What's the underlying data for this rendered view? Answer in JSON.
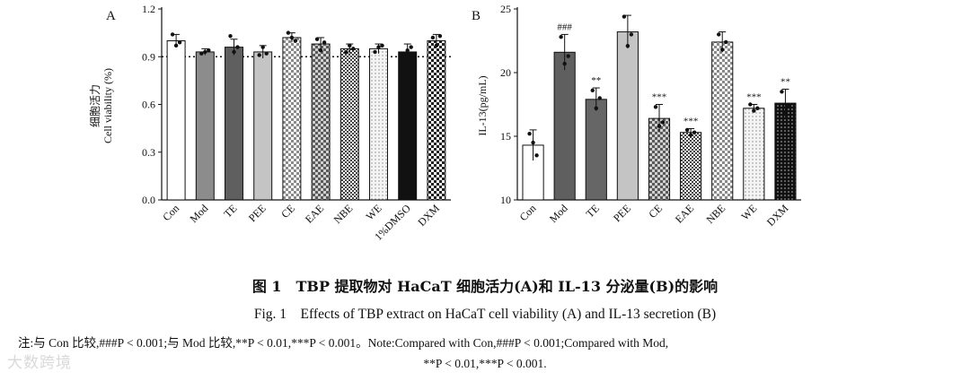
{
  "chart_data": [
    {
      "type": "bar",
      "panel": "A",
      "ylabel_zh": "细胞活力",
      "ylabel_en": "Cell viability (%)",
      "ylim": [
        0.0,
        1.2
      ],
      "yticks": [
        "0.0",
        "0.3",
        "0.6",
        "0.9",
        "1.2"
      ],
      "reference_line": 0.9,
      "categories": [
        "Con",
        "Mod",
        "TE",
        "PEE",
        "CE",
        "EAE",
        "NBE",
        "WE",
        "1%DMSO",
        "DXM"
      ],
      "values": [
        1.0,
        0.93,
        0.96,
        0.93,
        1.02,
        0.98,
        0.95,
        0.95,
        0.93,
        1.0
      ],
      "errors": [
        0.04,
        0.02,
        0.05,
        0.04,
        0.03,
        0.04,
        0.03,
        0.03,
        0.05,
        0.04
      ],
      "points": [
        [
          1.04,
          0.97,
          0.99
        ],
        [
          0.92,
          0.93,
          0.94
        ],
        [
          1.03,
          0.93,
          0.96
        ],
        [
          0.91,
          0.96,
          0.92
        ],
        [
          1.05,
          1.02,
          1.0
        ],
        [
          1.01,
          0.94,
          0.99
        ],
        [
          0.93,
          0.97,
          0.95
        ],
        [
          0.93,
          0.96,
          0.97
        ],
        [
          0.89,
          0.94,
          0.96
        ],
        [
          1.02,
          0.97,
          1.03
        ]
      ],
      "fills": [
        "white",
        "gray",
        "darkgray",
        "lightgray",
        "check-light",
        "check-mid",
        "check-dense",
        "dots",
        "black",
        "check-dark"
      ],
      "annotations": [
        "",
        "",
        "",
        "",
        "",
        "",
        "",
        "",
        "",
        ""
      ]
    },
    {
      "type": "bar",
      "panel": "B",
      "ylabel": "IL-13(pg/mL)",
      "ylim": [
        10,
        25
      ],
      "yticks": [
        "10",
        "15",
        "20",
        "25"
      ],
      "categories": [
        "Con",
        "Mod",
        "TE",
        "PEE",
        "CE",
        "EAE",
        "NBE",
        "WE",
        "DXM"
      ],
      "values": [
        14.3,
        21.6,
        17.9,
        23.2,
        16.4,
        15.3,
        22.4,
        17.2,
        17.6
      ],
      "errors": [
        1.2,
        1.4,
        0.9,
        1.3,
        1.1,
        0.3,
        0.8,
        0.3,
        1.1
      ],
      "points": [
        [
          15.2,
          14.5,
          13.5
        ],
        [
          22.8,
          20.7,
          21.3
        ],
        [
          18.6,
          17.2,
          18.0
        ],
        [
          24.4,
          22.1,
          23.0
        ],
        [
          17.3,
          15.8,
          16.1
        ],
        [
          15.5,
          15.1,
          15.3
        ],
        [
          23.0,
          21.8,
          22.4
        ],
        [
          17.5,
          17.0,
          17.2
        ],
        [
          18.5,
          16.8,
          17.4
        ]
      ],
      "fills": [
        "white",
        "darkgray",
        "darkgray2",
        "lightgray",
        "check-mid",
        "check-dense",
        "check-light",
        "dots",
        "dots-dark"
      ],
      "annotations": [
        "",
        "###",
        "**",
        "",
        "***",
        "***",
        "",
        "***",
        "**"
      ]
    }
  ],
  "figure": {
    "panel_a_label": "A",
    "panel_b_label": "B"
  },
  "caption": {
    "zh": "图 1　TBP 提取物对 HaCaT 细胞活力(A)和 IL-13 分泌量(B)的影响",
    "en": "Fig. 1　Effects of TBP extract on HaCaT cell viability (A) and IL-13 secretion (B)",
    "note_line1": "注:与 Con 比较,###P < 0.001;与 Mod 比较,**P < 0.01,***P < 0.001。Note:Compared with Con,###P < 0.001;Compared with Mod,",
    "note_line2": "**P < 0.01,***P < 0.001."
  },
  "watermark": "大数跨境"
}
